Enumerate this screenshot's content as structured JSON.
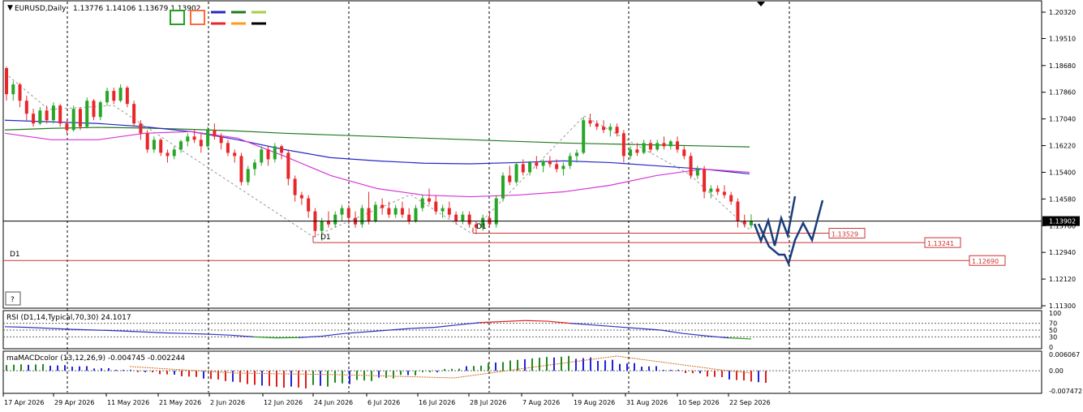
{
  "main": {
    "header": {
      "arrow": "▼",
      "symbol": "EURUSD,Daily",
      "ohlc": "1.13776 1.14106 1.13679 1.13902"
    },
    "d1_labels": [
      "D1",
      "D1",
      "D1"
    ],
    "help_button": "?",
    "current_price": "1.13902",
    "levels": [
      "1.13529",
      "1.13241",
      "1.12690"
    ],
    "price_axis": [
      "1.20320",
      "1.19510",
      "1.18680",
      "1.17860",
      "1.17040",
      "1.16220",
      "1.15400",
      "1.14580",
      "1.13760",
      "1.12940",
      "1.12120",
      "1.11300"
    ]
  },
  "rsi": {
    "title": "RSI (D1,14,Typical,70,30) 24.1017",
    "axis": [
      "100",
      "70",
      "50",
      "30",
      "0"
    ]
  },
  "macd": {
    "title": "maMACDcolor (13,12,26,9) -0.004745 -0.002244",
    "axis": [
      "0.006067",
      "0.00",
      "-0.007472"
    ]
  },
  "time_axis": [
    "17 Apr 2026",
    "29 Apr 2026",
    "11 May 2026",
    "21 May 2026",
    "2 Jun 2026",
    "12 Jun 2026",
    "24 Jun 2026",
    "6 Jul 2026",
    "16 Jul 2026",
    "28 Jul 2026",
    "7 Aug 2026",
    "19 Aug 2026",
    "31 Aug 2026",
    "10 Sep 2026",
    "22 Sep 2026"
  ],
  "colors": {
    "bull": "#28a628",
    "bear": "#e8272b",
    "ma_blue": "#2727c8",
    "ma_green": "#1f7a1f",
    "ma_magenta": "#d636d6",
    "level_red": "#cc3333",
    "forecast": "#1a3d7a",
    "rsi_line": "#3030c0",
    "rsi_high": "#e02020",
    "rsi_low": "#20a020",
    "macd_up": "#1f8a1f",
    "macd_down": "#e01e1e",
    "macd_blue": "#2222dd"
  },
  "chart_data": {
    "type": "candlestick",
    "ylim": [
      1.113,
      1.2032
    ],
    "candles": [
      [
        1.186,
        1.1865,
        1.176,
        1.178
      ],
      [
        1.178,
        1.182,
        1.176,
        1.181
      ],
      [
        1.181,
        1.1815,
        1.174,
        1.176
      ],
      [
        1.176,
        1.1775,
        1.17,
        1.172
      ],
      [
        1.172,
        1.1735,
        1.168,
        1.169
      ],
      [
        1.169,
        1.174,
        1.1685,
        1.173
      ],
      [
        1.173,
        1.1745,
        1.169,
        1.17
      ],
      [
        1.17,
        1.1755,
        1.169,
        1.1745
      ],
      [
        1.1745,
        1.175,
        1.168,
        1.169
      ],
      [
        1.169,
        1.17,
        1.166,
        1.167
      ],
      [
        1.167,
        1.1745,
        1.1665,
        1.1735
      ],
      [
        1.1735,
        1.174,
        1.167,
        1.168
      ],
      [
        1.168,
        1.177,
        1.1675,
        1.176
      ],
      [
        1.176,
        1.1765,
        1.17,
        1.171
      ],
      [
        1.171,
        1.176,
        1.17,
        1.1755
      ],
      [
        1.1755,
        1.18,
        1.1745,
        1.179
      ],
      [
        1.179,
        1.18,
        1.175,
        1.176
      ],
      [
        1.176,
        1.181,
        1.1755,
        1.18
      ],
      [
        1.18,
        1.1805,
        1.174,
        1.175
      ],
      [
        1.175,
        1.176,
        1.168,
        1.169
      ],
      [
        1.169,
        1.17,
        1.164,
        1.166
      ],
      [
        1.166,
        1.167,
        1.16,
        1.161
      ],
      [
        1.161,
        1.165,
        1.16,
        1.164
      ],
      [
        1.164,
        1.1645,
        1.159,
        1.16
      ],
      [
        1.16,
        1.161,
        1.157,
        1.159
      ],
      [
        1.159,
        1.162,
        1.158,
        1.161
      ],
      [
        1.161,
        1.164,
        1.16,
        1.1635
      ],
      [
        1.1635,
        1.166,
        1.162,
        1.165
      ],
      [
        1.165,
        1.167,
        1.163,
        1.164
      ],
      [
        1.164,
        1.166,
        1.16,
        1.162
      ],
      [
        1.162,
        1.168,
        1.1615,
        1.167
      ],
      [
        1.167,
        1.169,
        1.164,
        1.165
      ],
      [
        1.165,
        1.166,
        1.161,
        1.163
      ],
      [
        1.163,
        1.164,
        1.159,
        1.16
      ],
      [
        1.16,
        1.161,
        1.157,
        1.159
      ],
      [
        1.159,
        1.16,
        1.15,
        1.151
      ],
      [
        1.151,
        1.156,
        1.15,
        1.155
      ],
      [
        1.155,
        1.158,
        1.153,
        1.157
      ],
      [
        1.157,
        1.162,
        1.156,
        1.161
      ],
      [
        1.161,
        1.162,
        1.156,
        1.158
      ],
      [
        1.158,
        1.163,
        1.157,
        1.162
      ],
      [
        1.162,
        1.1625,
        1.158,
        1.16
      ],
      [
        1.16,
        1.161,
        1.15,
        1.152
      ],
      [
        1.152,
        1.153,
        1.145,
        1.147
      ],
      [
        1.147,
        1.148,
        1.144,
        1.146
      ],
      [
        1.146,
        1.147,
        1.14,
        1.142
      ],
      [
        1.142,
        1.143,
        1.134,
        1.136
      ],
      [
        1.136,
        1.14,
        1.133,
        1.139
      ],
      [
        1.139,
        1.142,
        1.137,
        1.138
      ],
      [
        1.138,
        1.142,
        1.137,
        1.141
      ],
      [
        1.141,
        1.144,
        1.139,
        1.143
      ],
      [
        1.143,
        1.144,
        1.138,
        1.14
      ],
      [
        1.14,
        1.142,
        1.137,
        1.138
      ],
      [
        1.138,
        1.144,
        1.137,
        1.143
      ],
      [
        1.143,
        1.148,
        1.138,
        1.139
      ],
      [
        1.139,
        1.145,
        1.1385,
        1.144
      ],
      [
        1.144,
        1.146,
        1.141,
        1.143
      ],
      [
        1.143,
        1.145,
        1.14,
        1.141
      ],
      [
        1.141,
        1.144,
        1.14,
        1.143
      ],
      [
        1.143,
        1.145,
        1.14,
        1.141
      ],
      [
        1.141,
        1.143,
        1.138,
        1.139
      ],
      [
        1.139,
        1.144,
        1.1385,
        1.143
      ],
      [
        1.143,
        1.147,
        1.142,
        1.146
      ],
      [
        1.146,
        1.149,
        1.144,
        1.145
      ],
      [
        1.145,
        1.147,
        1.141,
        1.142
      ],
      [
        1.142,
        1.144,
        1.14,
        1.143
      ],
      [
        1.143,
        1.145,
        1.14,
        1.141
      ],
      [
        1.141,
        1.142,
        1.138,
        1.139
      ],
      [
        1.139,
        1.142,
        1.138,
        1.141
      ],
      [
        1.141,
        1.142,
        1.137,
        1.138
      ],
      [
        1.138,
        1.139,
        1.135,
        1.137
      ],
      [
        1.137,
        1.141,
        1.136,
        1.14
      ],
      [
        1.14,
        1.142,
        1.137,
        1.138
      ],
      [
        1.138,
        1.147,
        1.137,
        1.146
      ],
      [
        1.146,
        1.154,
        1.145,
        1.153
      ],
      [
        1.153,
        1.156,
        1.15,
        1.151
      ],
      [
        1.151,
        1.157,
        1.1505,
        1.1565
      ],
      [
        1.1565,
        1.158,
        1.153,
        1.154
      ],
      [
        1.154,
        1.1575,
        1.153,
        1.157
      ],
      [
        1.157,
        1.159,
        1.155,
        1.156
      ],
      [
        1.156,
        1.158,
        1.154,
        1.1575
      ],
      [
        1.1575,
        1.159,
        1.1555,
        1.1565
      ],
      [
        1.1565,
        1.158,
        1.154,
        1.155
      ],
      [
        1.155,
        1.157,
        1.153,
        1.156
      ],
      [
        1.156,
        1.16,
        1.155,
        1.159
      ],
      [
        1.159,
        1.161,
        1.157,
        1.16
      ],
      [
        1.16,
        1.171,
        1.1595,
        1.17
      ],
      [
        1.17,
        1.172,
        1.168,
        1.169
      ],
      [
        1.169,
        1.17,
        1.167,
        1.168
      ],
      [
        1.168,
        1.17,
        1.166,
        1.167
      ],
      [
        1.167,
        1.169,
        1.165,
        1.168
      ],
      [
        1.168,
        1.169,
        1.165,
        1.166
      ],
      [
        1.166,
        1.167,
        1.157,
        1.159
      ],
      [
        1.159,
        1.162,
        1.158,
        1.161
      ],
      [
        1.161,
        1.163,
        1.159,
        1.16
      ],
      [
        1.16,
        1.164,
        1.1595,
        1.163
      ],
      [
        1.163,
        1.164,
        1.16,
        1.161
      ],
      [
        1.161,
        1.164,
        1.1605,
        1.163
      ],
      [
        1.163,
        1.165,
        1.161,
        1.162
      ],
      [
        1.162,
        1.164,
        1.161,
        1.1635
      ],
      [
        1.1635,
        1.165,
        1.16,
        1.161
      ],
      [
        1.161,
        1.162,
        1.158,
        1.159
      ],
      [
        1.159,
        1.16,
        1.152,
        1.153
      ],
      [
        1.153,
        1.156,
        1.152,
        1.155
      ],
      [
        1.155,
        1.156,
        1.146,
        1.148
      ],
      [
        1.148,
        1.15,
        1.146,
        1.149
      ],
      [
        1.149,
        1.15,
        1.147,
        1.148
      ],
      [
        1.148,
        1.15,
        1.146,
        1.147
      ],
      [
        1.147,
        1.148,
        1.144,
        1.145
      ],
      [
        1.145,
        1.146,
        1.137,
        1.139
      ],
      [
        1.139,
        1.141,
        1.137,
        1.138
      ],
      [
        1.1377,
        1.1411,
        1.1368,
        1.139
      ]
    ],
    "ma_blue": [
      1.17,
      1.1695,
      1.169,
      1.168,
      1.1665,
      1.164,
      1.161,
      1.1585,
      1.1575,
      1.1568,
      1.1566,
      1.157,
      1.1575,
      1.157,
      1.156,
      1.155,
      1.1535
    ],
    "ma_green": [
      1.167,
      1.1675,
      1.1678,
      1.1676,
      1.1672,
      1.1667,
      1.166,
      1.1655,
      1.165,
      1.1645,
      1.164,
      1.1635,
      1.163,
      1.1627,
      1.1624,
      1.1621,
      1.1618
    ],
    "ma_magenta": [
      1.166,
      1.164,
      1.164,
      1.166,
      1.1665,
      1.1645,
      1.159,
      1.153,
      1.149,
      1.147,
      1.1465,
      1.147,
      1.148,
      1.15,
      1.153,
      1.155,
      1.154
    ],
    "forecast_path": [
      [
        0,
        1.1378
      ],
      [
        1,
        1.133
      ],
      [
        2,
        1.137
      ],
      [
        3,
        1.131
      ],
      [
        4,
        1.139
      ],
      [
        5,
        1.134
      ],
      [
        6,
        1.146
      ]
    ],
    "rsi": [
      60,
      58,
      55,
      52,
      50,
      48,
      45,
      42,
      40,
      38,
      35,
      30,
      27,
      28,
      32,
      40,
      45,
      50,
      55,
      58,
      65,
      72,
      75,
      78,
      76,
      70,
      65,
      60,
      55,
      50,
      40,
      33,
      27,
      24
    ],
    "macd_hist": [
      0.0025,
      0.0026,
      0.0022,
      0.0018,
      0.001,
      0.0004,
      -0.0006,
      -0.0015,
      -0.0024,
      -0.0034,
      -0.0045,
      -0.0058,
      -0.0066,
      -0.0069,
      -0.0062,
      -0.0052,
      -0.004,
      -0.003,
      -0.0018,
      -0.0006,
      0.0008,
      0.002,
      0.0034,
      0.0045,
      0.0054,
      0.0058,
      0.0052,
      0.0043,
      0.003,
      0.0018,
      0.0004,
      -0.001,
      -0.0025,
      -0.0038,
      -0.0047
    ]
  }
}
